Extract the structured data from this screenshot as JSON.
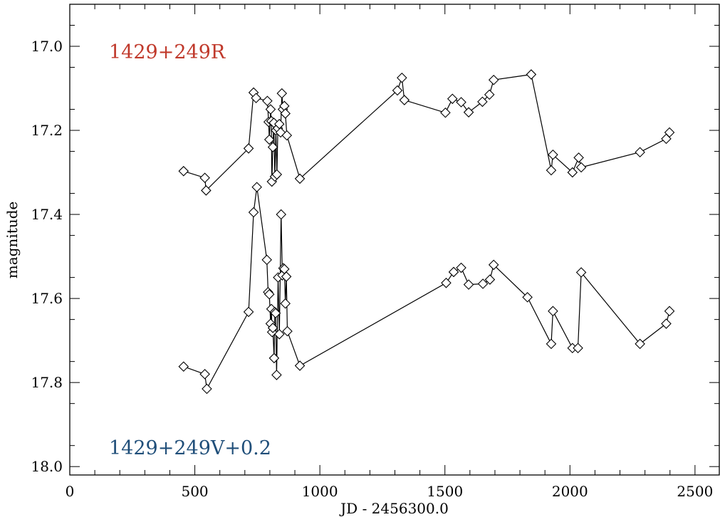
{
  "chart_data": {
    "type": "line",
    "xlabel": "JD - 2456300.0",
    "ylabel": "magnitude",
    "xlim": [
      0,
      2600
    ],
    "ylim": [
      18.02,
      16.9
    ],
    "y_inverted": true,
    "x_ticks": [
      0,
      500,
      1000,
      1500,
      2000,
      2500
    ],
    "y_ticks": [
      17.0,
      17.2,
      17.4,
      17.6,
      17.8,
      18.0
    ],
    "x_tick_labels": [
      "0",
      "500",
      "1000",
      "1500",
      "2000",
      "2500"
    ],
    "y_tick_labels": [
      "17.0",
      "17.2",
      "17.4",
      "17.6",
      "17.8",
      "18.0"
    ],
    "marker": "diamond",
    "grid": false,
    "series": [
      {
        "name": "1429+249R",
        "color": "#c0392b",
        "points": [
          [
            455,
            17.297
          ],
          [
            540,
            17.313
          ],
          [
            545,
            17.343
          ],
          [
            715,
            17.243
          ],
          [
            735,
            17.11
          ],
          [
            745,
            17.123
          ],
          [
            790,
            17.13
          ],
          [
            795,
            17.18
          ],
          [
            798,
            17.222
          ],
          [
            803,
            17.15
          ],
          [
            806,
            17.178
          ],
          [
            808,
            17.322
          ],
          [
            812,
            17.24
          ],
          [
            816,
            17.182
          ],
          [
            820,
            17.31
          ],
          [
            824,
            17.2
          ],
          [
            828,
            17.305
          ],
          [
            832,
            17.195
          ],
          [
            838,
            17.185
          ],
          [
            843,
            17.205
          ],
          [
            848,
            17.112
          ],
          [
            852,
            17.15
          ],
          [
            858,
            17.142
          ],
          [
            862,
            17.16
          ],
          [
            868,
            17.212
          ],
          [
            920,
            17.315
          ],
          [
            1310,
            17.105
          ],
          [
            1328,
            17.075
          ],
          [
            1338,
            17.128
          ],
          [
            1502,
            17.158
          ],
          [
            1530,
            17.125
          ],
          [
            1565,
            17.133
          ],
          [
            1595,
            17.157
          ],
          [
            1650,
            17.132
          ],
          [
            1678,
            17.115
          ],
          [
            1695,
            17.08
          ],
          [
            1845,
            17.067
          ],
          [
            1925,
            17.295
          ],
          [
            1932,
            17.258
          ],
          [
            2010,
            17.3
          ],
          [
            2035,
            17.265
          ],
          [
            2045,
            17.288
          ],
          [
            2280,
            17.252
          ],
          [
            2385,
            17.22
          ],
          [
            2398,
            17.205
          ]
        ]
      },
      {
        "name": "1429+249V+0.2",
        "color": "#1f4e79",
        "points": [
          [
            455,
            17.762
          ],
          [
            540,
            17.78
          ],
          [
            548,
            17.815
          ],
          [
            715,
            17.632
          ],
          [
            735,
            17.395
          ],
          [
            748,
            17.335
          ],
          [
            788,
            17.508
          ],
          [
            793,
            17.585
          ],
          [
            798,
            17.59
          ],
          [
            803,
            17.66
          ],
          [
            806,
            17.625
          ],
          [
            809,
            17.68
          ],
          [
            812,
            17.67
          ],
          [
            817,
            17.742
          ],
          [
            820,
            17.632
          ],
          [
            823,
            17.635
          ],
          [
            827,
            17.782
          ],
          [
            833,
            17.55
          ],
          [
            838,
            17.685
          ],
          [
            845,
            17.4
          ],
          [
            850,
            17.545
          ],
          [
            854,
            17.528
          ],
          [
            858,
            17.53
          ],
          [
            862,
            17.612
          ],
          [
            866,
            17.548
          ],
          [
            870,
            17.678
          ],
          [
            920,
            17.76
          ],
          [
            1505,
            17.563
          ],
          [
            1535,
            17.537
          ],
          [
            1565,
            17.527
          ],
          [
            1595,
            17.567
          ],
          [
            1652,
            17.565
          ],
          [
            1680,
            17.555
          ],
          [
            1695,
            17.52
          ],
          [
            1830,
            17.597
          ],
          [
            1925,
            17.708
          ],
          [
            1932,
            17.63
          ],
          [
            2010,
            17.718
          ],
          [
            2032,
            17.718
          ],
          [
            2045,
            17.538
          ],
          [
            2280,
            17.708
          ],
          [
            2385,
            17.66
          ],
          [
            2398,
            17.63
          ]
        ]
      }
    ],
    "annotations": [
      {
        "text": "1429+249R",
        "color": "#c0392b"
      },
      {
        "text": "1429+249V+0.2",
        "color": "#1f4e79"
      }
    ]
  }
}
